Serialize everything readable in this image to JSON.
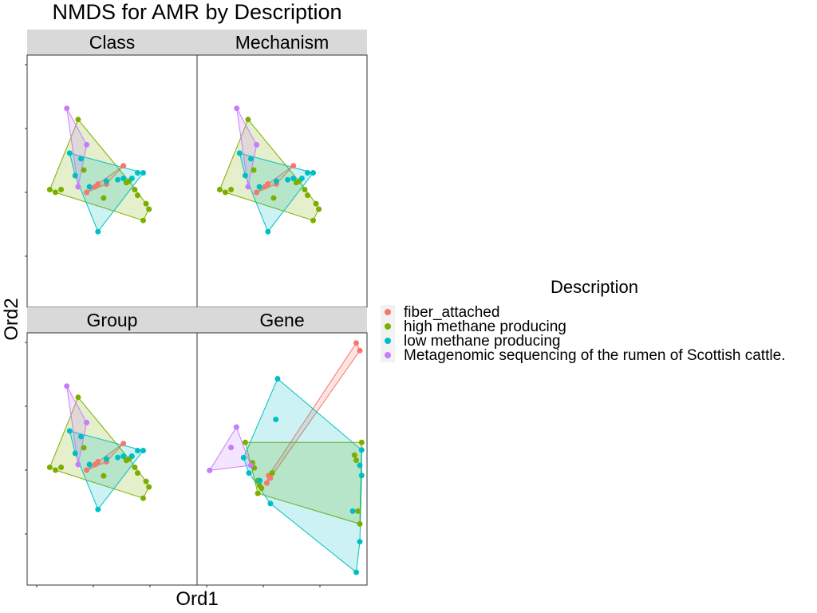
{
  "chart_data": {
    "type": "scatter",
    "title": "NMDS for AMR by Description",
    "xlabel": "Ord1",
    "ylabel": "Ord2",
    "legend": {
      "title": "Description",
      "position": "right"
    },
    "series": [
      {
        "name": "fiber_attached",
        "color": "#F8766D"
      },
      {
        "name": "high methane producing",
        "color": "#7CAE00"
      },
      {
        "name": "low methane producing",
        "color": "#00BFC4"
      },
      {
        "name": "Metagenomic sequencing of the rumen of Scottish cattle.",
        "color": "#C77CFF"
      }
    ],
    "grid": false,
    "panels": [
      {
        "label": "Class",
        "points": [
          [
            [
              -0.9,
              -0.4
            ],
            [
              -0.6,
              -0.2
            ],
            [
              -0.2,
              -0.1
            ],
            [
              0.4,
              0.55
            ],
            [
              -0.5,
              -0.1
            ]
          ],
          [
            [
              -2.2,
              -0.3
            ],
            [
              -1.2,
              2.2
            ],
            [
              -1.0,
              0.4
            ],
            [
              0.6,
              0.0
            ],
            [
              0.8,
              -0.3
            ],
            [
              0.9,
              -0.5
            ],
            [
              1.1,
              -1.4
            ],
            [
              1.2,
              -0.8
            ],
            [
              1.3,
              -1.0
            ],
            [
              -0.3,
              -0.6
            ],
            [
              -2.0,
              -0.4
            ],
            [
              0.5,
              -0.05
            ],
            [
              -1.8,
              -0.3
            ]
          ],
          [
            [
              -1.5,
              1.0
            ],
            [
              -0.8,
              -0.2
            ],
            [
              -0.2,
              0.0
            ],
            [
              0.9,
              0.3
            ],
            [
              1.1,
              0.3
            ],
            [
              -0.5,
              -1.8
            ],
            [
              0.4,
              0.1
            ],
            [
              -1.1,
              0.8
            ],
            [
              0.7,
              0.1
            ],
            [
              -1.3,
              0.2
            ],
            [
              0.2,
              0.05
            ]
          ],
          [
            [
              -1.6,
              2.6
            ],
            [
              -0.9,
              1.3
            ],
            [
              -1.2,
              -0.2
            ]
          ]
        ]
      },
      {
        "label": "Mechanism",
        "points": [
          [
            [
              -0.9,
              -0.4
            ],
            [
              -0.6,
              -0.2
            ],
            [
              -0.2,
              -0.1
            ],
            [
              0.4,
              0.55
            ],
            [
              -0.5,
              -0.1
            ]
          ],
          [
            [
              -2.2,
              -0.3
            ],
            [
              -1.2,
              2.2
            ],
            [
              -1.0,
              0.4
            ],
            [
              0.6,
              0.0
            ],
            [
              0.8,
              -0.3
            ],
            [
              0.9,
              -0.5
            ],
            [
              1.1,
              -1.4
            ],
            [
              1.2,
              -0.8
            ],
            [
              1.3,
              -1.0
            ],
            [
              -0.3,
              -0.6
            ],
            [
              -2.0,
              -0.4
            ],
            [
              0.5,
              -0.05
            ],
            [
              -1.8,
              -0.3
            ]
          ],
          [
            [
              -1.5,
              1.0
            ],
            [
              -0.8,
              -0.2
            ],
            [
              -0.2,
              0.0
            ],
            [
              0.9,
              0.3
            ],
            [
              1.1,
              0.3
            ],
            [
              -0.5,
              -1.8
            ],
            [
              0.4,
              0.1
            ],
            [
              -1.1,
              0.8
            ],
            [
              0.7,
              0.1
            ],
            [
              -1.3,
              0.2
            ],
            [
              0.2,
              0.05
            ]
          ],
          [
            [
              -1.6,
              2.6
            ],
            [
              -0.9,
              1.3
            ],
            [
              -1.2,
              -0.2
            ]
          ]
        ]
      },
      {
        "label": "Group",
        "points": [
          [
            [
              -0.9,
              -0.4
            ],
            [
              -0.6,
              -0.2
            ],
            [
              -0.2,
              -0.1
            ],
            [
              0.4,
              0.55
            ],
            [
              -0.5,
              -0.1
            ]
          ],
          [
            [
              -2.2,
              -0.3
            ],
            [
              -1.2,
              2.2
            ],
            [
              -1.0,
              0.4
            ],
            [
              0.6,
              0.0
            ],
            [
              0.8,
              -0.3
            ],
            [
              0.9,
              -0.5
            ],
            [
              1.1,
              -1.4
            ],
            [
              1.2,
              -0.8
            ],
            [
              1.3,
              -1.0
            ],
            [
              -0.3,
              -0.6
            ],
            [
              -2.0,
              -0.4
            ],
            [
              0.5,
              -0.05
            ],
            [
              -1.8,
              -0.3
            ]
          ],
          [
            [
              -1.5,
              1.0
            ],
            [
              -0.8,
              -0.2
            ],
            [
              -0.2,
              0.0
            ],
            [
              0.9,
              0.3
            ],
            [
              1.1,
              0.3
            ],
            [
              -0.5,
              -1.8
            ],
            [
              0.4,
              0.1
            ],
            [
              -1.1,
              0.8
            ],
            [
              0.7,
              0.1
            ],
            [
              -1.3,
              0.2
            ],
            [
              0.2,
              0.05
            ]
          ],
          [
            [
              -1.6,
              2.6
            ],
            [
              -0.9,
              1.3
            ],
            [
              -1.2,
              -0.2
            ]
          ]
        ]
      },
      {
        "label": "Gene",
        "points": [
          [
            [
              4.4,
              4.9
            ],
            [
              4.6,
              4.6
            ],
            [
              -0.4,
              -0.4
            ],
            [
              -0.6,
              -0.6
            ],
            [
              -0.5,
              -0.3
            ]
          ],
          [
            [
              -1.8,
              1.0
            ],
            [
              4.7,
              1.0
            ],
            [
              4.6,
              -2.2
            ],
            [
              -1.1,
              -1.0
            ],
            [
              -1.0,
              -0.7
            ],
            [
              -1.3,
              0.0
            ],
            [
              -0.3,
              -0.2
            ],
            [
              4.3,
              0.5
            ],
            [
              4.4,
              0.3
            ],
            [
              4.5,
              -1.7
            ],
            [
              -1.1,
              -0.5
            ],
            [
              -0.9,
              -0.8
            ],
            [
              -1.4,
              0.2
            ]
          ],
          [
            [
              0.0,
              3.5
            ],
            [
              -0.1,
              1.9
            ],
            [
              -0.4,
              -1.4
            ],
            [
              4.6,
              0.1
            ],
            [
              4.7,
              -0.3
            ],
            [
              4.2,
              -1.7
            ],
            [
              4.6,
              -2.9
            ],
            [
              4.4,
              -4.1
            ],
            [
              4.7,
              0.7
            ],
            [
              -1.9,
              0.4
            ],
            [
              -1.6,
              -0.2
            ],
            [
              -1.0,
              -0.5
            ]
          ],
          [
            [
              -2.6,
              0.8
            ],
            [
              -3.8,
              -0.1
            ],
            [
              -2.3,
              1.6
            ],
            [
              -1.5,
              0.1
            ]
          ]
        ]
      }
    ],
    "class_axes": {
      "xlim": [
        -3,
        3
      ],
      "ylim": [
        -4.5,
        4.5
      ]
    },
    "gene_axes": {
      "xlim": [
        -4.5,
        5.0
      ],
      "ylim": [
        -4.6,
        5.3
      ]
    }
  }
}
